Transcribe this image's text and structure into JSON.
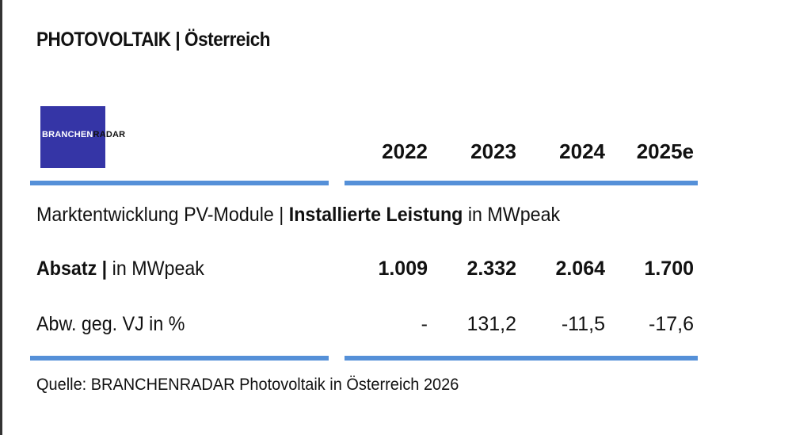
{
  "title": "PHOTOVOLTAIK | Österreich",
  "logo": {
    "text_part1": "BRANCHEN",
    "text_part2": "RADAR",
    "box_color": "#3535a6"
  },
  "accent_color": "#5590d8",
  "table": {
    "years": [
      "2022",
      "2023",
      "2024",
      "2025e"
    ],
    "section_title": {
      "prefix": "Marktentwicklung PV-Module | ",
      "bold": "Installierte Leistung",
      "suffix": " in MWpeak"
    },
    "rows": [
      {
        "label_bold": "Absatz |",
        "label_rest": " in MWpeak",
        "values": [
          "1.009",
          "2.332",
          "2.064",
          "1.700"
        ]
      },
      {
        "label_bold": "",
        "label_rest": "Abw. geg. VJ in %",
        "values": [
          "-",
          "131,2",
          "-11,5",
          "-17,6"
        ]
      }
    ]
  },
  "source": "Quelle: BRANCHENRADAR Photovoltaik in Österreich 2026"
}
